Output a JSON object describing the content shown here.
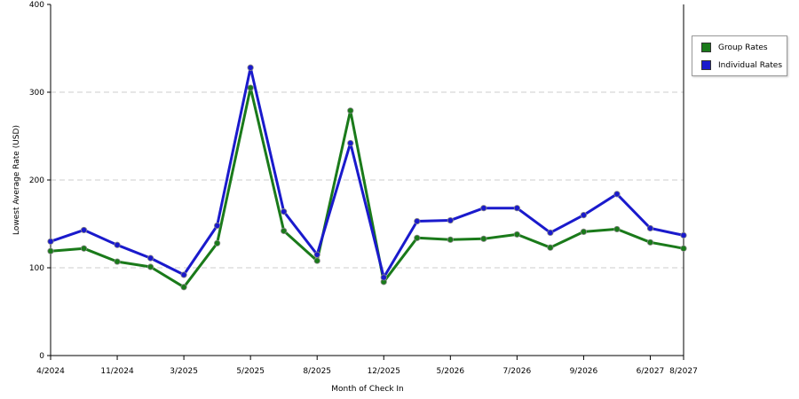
{
  "chart_data": {
    "type": "line",
    "title": "",
    "xlabel": "Month of Check In",
    "ylabel": "Lowest Average Rate (USD)",
    "ylim": [
      0,
      400
    ],
    "yticks": [
      0,
      100,
      200,
      300,
      400
    ],
    "grid": true,
    "legend_position": "right",
    "x_tick_labels": [
      {
        "i": 0,
        "label": "4/2024"
      },
      {
        "i": 2,
        "label": "11/2024"
      },
      {
        "i": 4,
        "label": "3/2025"
      },
      {
        "i": 6,
        "label": "5/2025"
      },
      {
        "i": 8,
        "label": "8/2025"
      },
      {
        "i": 10,
        "label": "12/2025"
      },
      {
        "i": 12,
        "label": "5/2026"
      },
      {
        "i": 14,
        "label": "7/2026"
      },
      {
        "i": 16,
        "label": "9/2026"
      },
      {
        "i": 18,
        "label": "6/2027"
      },
      {
        "i": 19,
        "label": "8/2027"
      }
    ],
    "series": [
      {
        "name": "Group Rates",
        "color": "#1a7a1a",
        "values": [
          119,
          122,
          107,
          101,
          78,
          128,
          305,
          142,
          108,
          279,
          84,
          134,
          132,
          133,
          138,
          123,
          141,
          144,
          129,
          122
        ]
      },
      {
        "name": "Individual Rates",
        "color": "#1a1acc",
        "values": [
          130,
          143,
          126,
          111,
          92,
          148,
          328,
          164,
          115,
          242,
          89,
          153,
          154,
          168,
          168,
          140,
          160,
          184,
          145,
          137
        ]
      }
    ]
  }
}
